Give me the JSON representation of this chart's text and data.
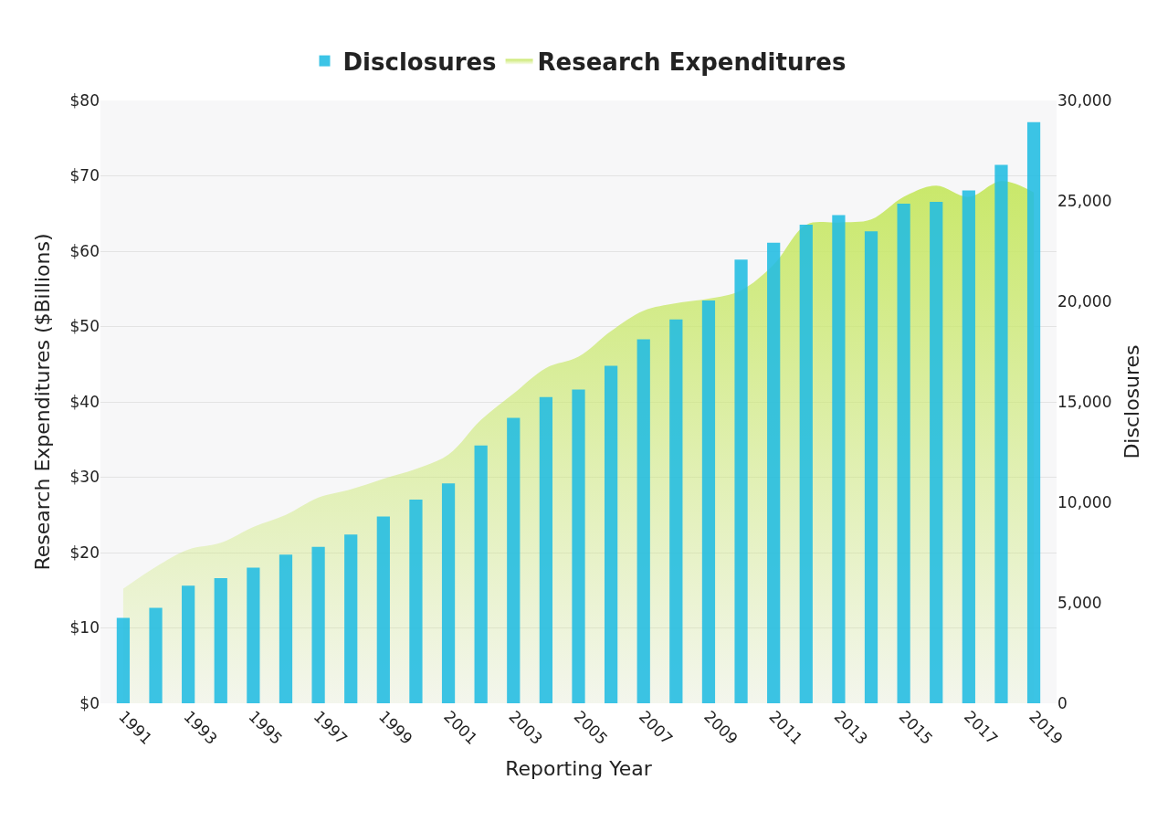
{
  "chart_data": {
    "type": "bar",
    "xlabel": "Reporting Year",
    "ylabel": "Research Expenditures ($Billions)",
    "y2label": "Disclosures",
    "categories": [
      "1991",
      null,
      "1993",
      null,
      "1995",
      null,
      "1997",
      null,
      "1999",
      null,
      "2001",
      null,
      "2003",
      null,
      "2005",
      null,
      "2007",
      null,
      "2009",
      null,
      "2011",
      null,
      "2013",
      null,
      "2015",
      null,
      "2017",
      null,
      "2019"
    ],
    "series": [
      {
        "name": "Research Expenditures",
        "type": "area",
        "color": "#c9e86a",
        "values": [
          15.2,
          18.1,
          20.4,
          21.3,
          23.4,
          25.0,
          27.3,
          28.4,
          29.8,
          31.1,
          33.0,
          37.6,
          41.1,
          44.5,
          46.0,
          49.4,
          52.1,
          53.1,
          53.7,
          54.8,
          58.2,
          63.5,
          63.8,
          64.2,
          67.2,
          68.7,
          67.2,
          69.3,
          67.8
        ]
      },
      {
        "name": "Disclosures",
        "axis": "y2",
        "color": "#22bde3",
        "values": [
          4250,
          4750,
          5850,
          6230,
          6750,
          7400,
          7780,
          8400,
          9290,
          10140,
          10940,
          12830,
          14200,
          15240,
          15610,
          16790,
          18110,
          19100,
          20050,
          22080,
          22920,
          23820,
          24290,
          23490,
          24860,
          24950,
          25520,
          26790,
          28920
        ]
      }
    ],
    "ylim": [
      0,
      80
    ],
    "yticks": [
      {
        "value": 0,
        "label": "$0"
      },
      {
        "value": 10,
        "label": "$10"
      },
      {
        "value": 20,
        "label": "$20"
      },
      {
        "value": 30,
        "label": "$30"
      },
      {
        "value": 40,
        "label": "$40"
      },
      {
        "value": 50,
        "label": "$50"
      },
      {
        "value": 60,
        "label": "$60"
      },
      {
        "value": 70,
        "label": "$70"
      },
      {
        "value": 80,
        "label": "$80"
      }
    ],
    "y2lim": [
      0,
      30000
    ],
    "y2ticks": [
      0,
      {
        "value": 5000,
        "label": "5,000"
      },
      {
        "value": 10000,
        "label": "10,000"
      },
      {
        "value": 15000,
        "label": "15,000"
      },
      {
        "value": 20000,
        "label": "20,000"
      },
      {
        "value": 25000,
        "label": "25,000"
      },
      {
        "value": 30000,
        "label": "30,000"
      }
    ],
    "grid": "y",
    "legend": "top"
  }
}
